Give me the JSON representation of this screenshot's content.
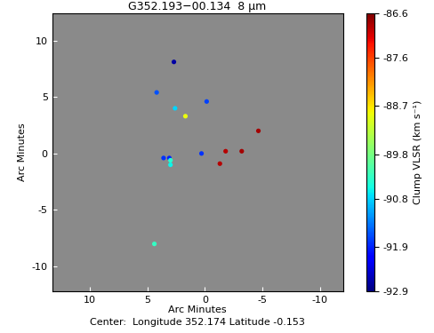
{
  "chart_data": {
    "type": "scatter",
    "title": "G352.193−00.134  8 μm",
    "x_label": "Arc Minutes",
    "y_label": "Arc Minutes",
    "footer": "Center:  Longitude 352.174 Latitude -0.153",
    "colorbar_label": "Clump VLSR (km s⁻¹)",
    "x": [
      2.7,
      4.2,
      2.6,
      -0.15,
      1.7,
      -4.65,
      0.3,
      -1.8,
      -3.2,
      -1.3,
      3.6,
      3.1,
      3.0,
      3.0,
      4.4
    ],
    "y": [
      8.1,
      5.4,
      4.0,
      4.6,
      3.3,
      2.0,
      0.0,
      0.2,
      0.2,
      -0.9,
      -0.4,
      -0.4,
      -0.6,
      -1.0,
      -8.0
    ],
    "clump_vlsr": [
      -92.7,
      -91.6,
      -90.8,
      -91.7,
      -88.9,
      -86.8,
      -91.8,
      -86.9,
      -86.8,
      -86.9,
      -91.8,
      -91.9,
      -90.4,
      -90.6,
      -90.3
    ],
    "xlim": [
      13.3,
      -12.0
    ],
    "ylim": [
      -12.2,
      12.4
    ],
    "xticks": [
      10,
      5,
      0,
      -5,
      -10
    ],
    "yticks": [
      -10,
      -5,
      0,
      5,
      10
    ],
    "colorbar_lim": [
      -92.9,
      -86.6
    ],
    "colorbar_ticks": [
      -92.9,
      -91.9,
      -90.8,
      -89.8,
      -88.7,
      -87.6,
      -86.6
    ],
    "grid": false
  }
}
